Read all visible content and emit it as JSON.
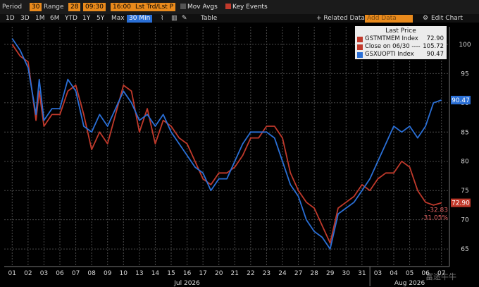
{
  "toolbar": {
    "period_label": "Period",
    "period_value": "30",
    "range_label": "Range",
    "range_value": "28",
    "time_from": "09:30",
    "time_to": "16:00",
    "field_value": "Lst Trd/Lst P",
    "mov_avgs": "Mov Avgs",
    "key_events": "Key Events",
    "related_data": "+ Related Data",
    "add_data_placeholder": "Add Data",
    "edit_chart": "Edit Chart",
    "ranges": [
      "1D",
      "3D",
      "1M",
      "6M",
      "YTD",
      "1Y",
      "5Y",
      "Max"
    ],
    "interval": "30 Min",
    "table": "Table"
  },
  "legend": {
    "title": "Last Price",
    "rows": [
      {
        "name": "GSTMTMEM Index",
        "value": "72.90",
        "color": "#c0392b"
      },
      {
        "name": "Close on 06/30 ----",
        "value": "105.72",
        "color": "#c0392b"
      },
      {
        "name": "GSXUOPTI Index",
        "value": "90.47",
        "color": "#2a6fd6"
      }
    ]
  },
  "watermark": "富途牛牛",
  "chart_data": {
    "type": "line",
    "ylim": [
      62,
      103
    ],
    "yticks": [
      65,
      70,
      75,
      80,
      85,
      90,
      95,
      100
    ],
    "x_labels": [
      "01",
      "02",
      "03",
      "06",
      "07",
      "08",
      "09",
      "10",
      "13",
      "14",
      "15",
      "16",
      "17",
      "20",
      "21",
      "22",
      "23",
      "24",
      "27",
      "28",
      "29",
      "30",
      "31",
      "03",
      "04",
      "05",
      "06",
      "07"
    ],
    "month_labels": [
      "Jul 2026",
      "Aug 2026"
    ],
    "grid": true,
    "series": [
      {
        "name": "GSTMTMEM Index",
        "color": "#c0392b",
        "last_label": "72.90",
        "x": [
          0,
          0.5,
          1,
          1.5,
          1.7,
          2,
          2.5,
          3,
          3.5,
          4,
          4.5,
          5,
          5.5,
          6,
          6.5,
          7,
          7.5,
          8,
          8.5,
          9,
          9.5,
          10,
          10.5,
          11,
          11.5,
          12,
          12.5,
          13,
          13.5,
          14,
          14.5,
          15,
          15.5,
          16,
          16.5,
          17,
          17.5,
          18,
          18.5,
          19,
          19.5,
          20,
          20.5,
          21,
          21.5,
          22,
          22.5,
          23,
          23.5,
          24,
          24.5,
          25,
          25.5,
          26,
          26.5,
          27
        ],
        "values": [
          100,
          98,
          97,
          87,
          92,
          86,
          88,
          88,
          92,
          93,
          88,
          82,
          85,
          83,
          88,
          93,
          92,
          85,
          89,
          83,
          87,
          86,
          84,
          83,
          80,
          77,
          76,
          78,
          78,
          79,
          81,
          84,
          84,
          86,
          86,
          84,
          78,
          75,
          73,
          72,
          69,
          66,
          72,
          73,
          74,
          76,
          75,
          77,
          78,
          78,
          80,
          79,
          75,
          73,
          72.5,
          72.9
        ]
      },
      {
        "name": "GSXUOPTI Index",
        "color": "#2a6fd6",
        "last_label": "90.47",
        "x": [
          0,
          0.5,
          1,
          1.5,
          1.7,
          2,
          2.5,
          3,
          3.5,
          4,
          4.5,
          5,
          5.5,
          6,
          6.5,
          7,
          7.5,
          8,
          8.5,
          9,
          9.5,
          10,
          10.5,
          11,
          11.5,
          12,
          12.5,
          13,
          13.5,
          14,
          14.5,
          15,
          15.5,
          16,
          16.5,
          17,
          17.5,
          18,
          18.5,
          19,
          19.5,
          20,
          20.5,
          21,
          21.5,
          22,
          22.5,
          23,
          23.5,
          24,
          24.5,
          25,
          25.5,
          26,
          26.5,
          27
        ],
        "values": [
          101,
          99,
          96,
          88,
          94,
          87,
          89,
          89,
          94,
          92,
          86,
          85,
          88,
          86,
          89,
          92,
          90,
          87,
          88,
          86,
          88,
          85,
          83,
          81,
          79,
          78,
          75,
          77,
          77,
          80,
          83,
          85,
          85,
          85,
          84,
          80,
          76,
          74,
          70,
          68,
          67,
          65,
          71,
          72,
          73,
          75,
          77,
          80,
          83,
          86,
          85,
          86,
          84,
          86,
          90,
          90.47
        ]
      }
    ],
    "reference_line": {
      "label": "Close on 06/30",
      "value": 105.72
    },
    "change_labels": [
      "-32.83",
      "-31.05%"
    ]
  }
}
